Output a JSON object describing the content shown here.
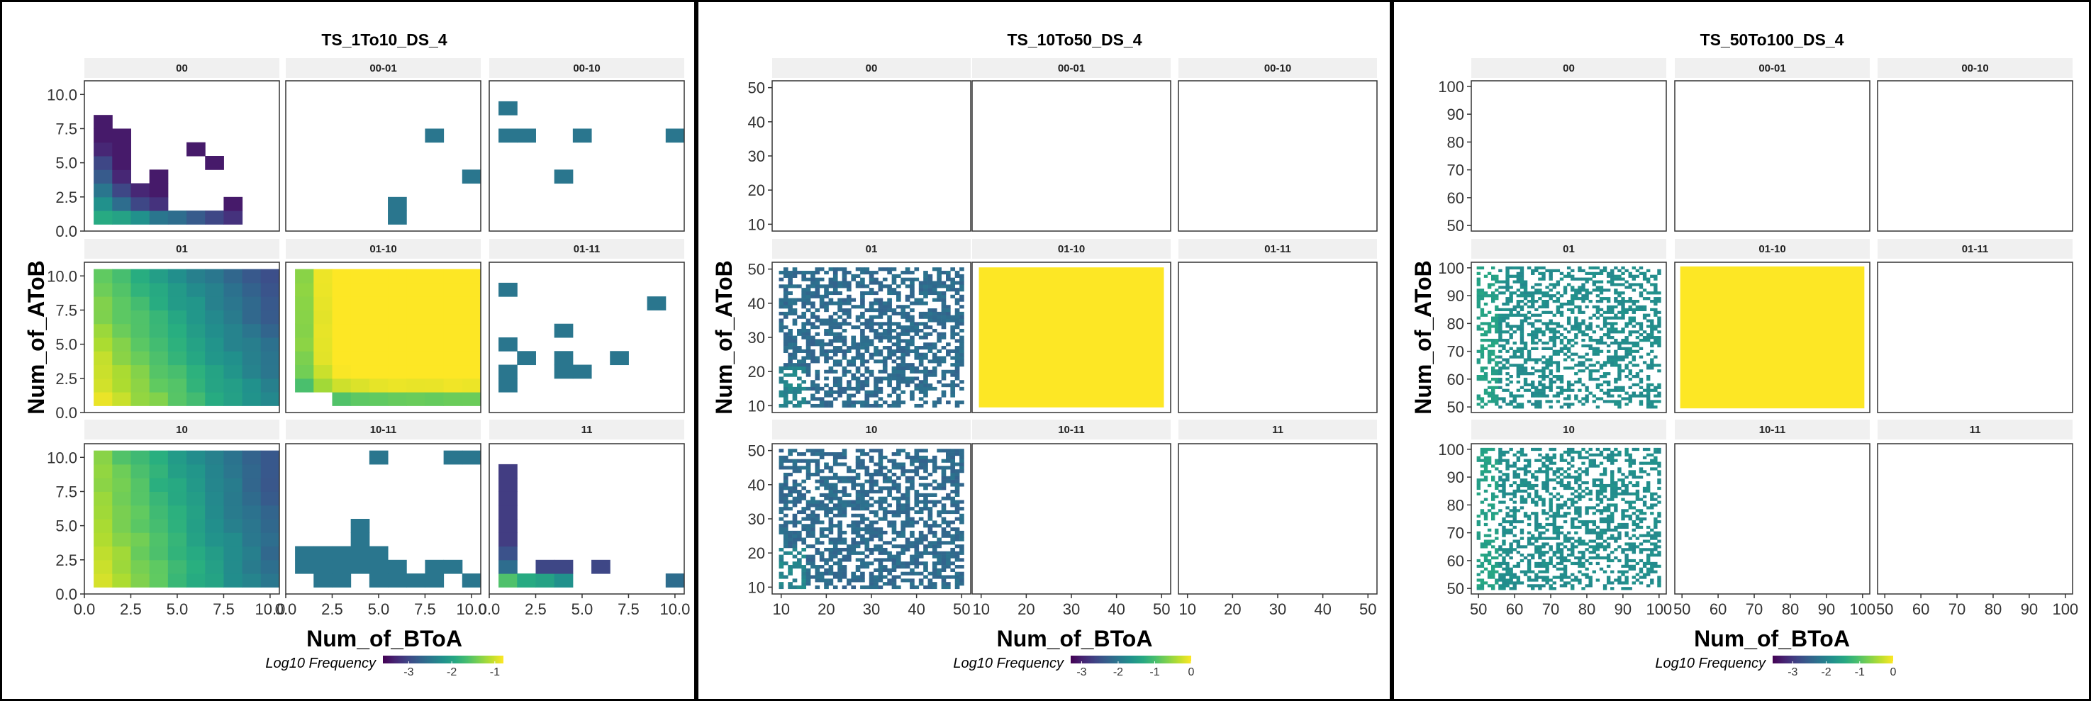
{
  "colors": {
    "background": "#ffffff",
    "strip_fill": "#f0f0f0",
    "frame": "#000000",
    "panel_border": "#333333",
    "viridis": [
      "#440154",
      "#472d7b",
      "#3b528b",
      "#2c728e",
      "#21918c",
      "#28ae80",
      "#5ec962",
      "#addc30",
      "#fde725"
    ]
  },
  "chart_data": [
    {
      "type": "heatmap",
      "title": "TS_1To10_DS_4",
      "xlabel": "Num_of_BToA",
      "ylabel": "Num_of_AToB",
      "facets": [
        "00",
        "00-01",
        "00-10",
        "01",
        "01-10",
        "01-11",
        "10",
        "10-11",
        "11"
      ],
      "xlim": [
        0,
        10.5
      ],
      "ylim": [
        0,
        11
      ],
      "x_ticks": [
        "0.0",
        "2.5",
        "5.0",
        "7.5",
        "10.0"
      ],
      "y_ticks": [
        "0.0",
        "2.5",
        "5.0",
        "7.5",
        "10.0"
      ],
      "legend": {
        "title": "Log10 Frequency",
        "labels": [
          "-3",
          "-2",
          "-1"
        ],
        "range": [
          -3.6,
          -0.8
        ],
        "position": "bottom"
      },
      "cells": {
        "00": [
          [
            1,
            1,
            -1.9
          ],
          [
            1,
            2,
            -2.2
          ],
          [
            1,
            3,
            -2.5
          ],
          [
            1,
            4,
            -2.8
          ],
          [
            1,
            5,
            -3.0
          ],
          [
            1,
            6,
            -3.3
          ],
          [
            1,
            7,
            -3.4
          ],
          [
            1,
            8,
            -3.4
          ],
          [
            2,
            1,
            -2.0
          ],
          [
            2,
            2,
            -2.6
          ],
          [
            2,
            3,
            -3.0
          ],
          [
            2,
            4,
            -3.3
          ],
          [
            2,
            5,
            -3.4
          ],
          [
            2,
            6,
            -3.4
          ],
          [
            2,
            7,
            -3.4
          ],
          [
            3,
            1,
            -2.2
          ],
          [
            3,
            2,
            -3.0
          ],
          [
            3,
            3,
            -3.3
          ],
          [
            4,
            1,
            -2.5
          ],
          [
            4,
            2,
            -3.2
          ],
          [
            4,
            3,
            -3.4
          ],
          [
            4,
            4,
            -3.4
          ],
          [
            5,
            1,
            -2.6
          ],
          [
            6,
            1,
            -2.8
          ],
          [
            6,
            6,
            -3.4
          ],
          [
            7,
            1,
            -3.0
          ],
          [
            7,
            5,
            -3.4
          ],
          [
            8,
            1,
            -3.2
          ],
          [
            8,
            2,
            -3.4
          ]
        ],
        "00-01": [
          [
            6,
            1,
            -2.5
          ],
          [
            6,
            2,
            -2.5
          ],
          [
            8,
            7,
            -2.5
          ],
          [
            10,
            4,
            -2.5
          ]
        ],
        "00-10": [
          [
            1,
            9,
            -2.5
          ],
          [
            1,
            7,
            -2.5
          ],
          [
            2,
            7,
            -2.5
          ],
          [
            4,
            4,
            -2.5
          ],
          [
            5,
            7,
            -2.5
          ],
          [
            10,
            7,
            -2.5
          ]
        ],
        "01": "smooth",
        "01-10": "smooth",
        "01-11": [
          [
            1,
            9,
            -2.5
          ],
          [
            1,
            5,
            -2.5
          ],
          [
            1,
            3,
            -2.5
          ],
          [
            1,
            2,
            -2.5
          ],
          [
            2,
            4,
            -2.5
          ],
          [
            4,
            6,
            -2.5
          ],
          [
            4,
            4,
            -2.5
          ],
          [
            4,
            3,
            -2.5
          ],
          [
            5,
            3,
            -2.5
          ],
          [
            7,
            4,
            -2.5
          ],
          [
            9,
            8,
            -2.5
          ]
        ],
        "10": "smooth",
        "10-11": [
          [
            1,
            3,
            -2.5
          ],
          [
            1,
            2,
            -2.5
          ],
          [
            2,
            3,
            -2.5
          ],
          [
            2,
            2,
            -2.5
          ],
          [
            2,
            1,
            -2.5
          ],
          [
            3,
            3,
            -2.5
          ],
          [
            3,
            2,
            -2.5
          ],
          [
            3,
            1,
            -2.5
          ],
          [
            4,
            5,
            -2.5
          ],
          [
            4,
            4,
            -2.5
          ],
          [
            4,
            3,
            -2.5
          ],
          [
            4,
            2,
            -2.5
          ],
          [
            5,
            3,
            -2.5
          ],
          [
            5,
            2,
            -2.5
          ],
          [
            5,
            1,
            -2.5
          ],
          [
            6,
            2,
            -2.5
          ],
          [
            6,
            1,
            -2.5
          ],
          [
            7,
            1,
            -2.5
          ],
          [
            8,
            2,
            -2.5
          ],
          [
            8,
            1,
            -2.5
          ],
          [
            9,
            2,
            -2.5
          ],
          [
            10,
            1,
            -2.5
          ],
          [
            5,
            10,
            -2.5
          ],
          [
            9,
            10,
            -2.5
          ],
          [
            10,
            10,
            -2.5
          ]
        ],
        "11": [
          [
            1,
            1,
            -1.6
          ],
          [
            1,
            2,
            -2.6
          ],
          [
            1,
            3,
            -2.9
          ],
          [
            1,
            4,
            -3.1
          ],
          [
            1,
            5,
            -3.1
          ],
          [
            1,
            6,
            -3.1
          ],
          [
            1,
            7,
            -3.1
          ],
          [
            1,
            8,
            -3.1
          ],
          [
            1,
            9,
            -3.1
          ],
          [
            2,
            1,
            -1.9
          ],
          [
            3,
            1,
            -2.0
          ],
          [
            3,
            2,
            -3.0
          ],
          [
            4,
            1,
            -2.2
          ],
          [
            4,
            2,
            -3.0
          ],
          [
            6,
            2,
            -3.0
          ],
          [
            10,
            1,
            -2.6
          ]
        ]
      }
    },
    {
      "type": "heatmap",
      "title": "TS_10To50_DS_4",
      "xlabel": "Num_of_BToA",
      "ylabel": "Num_of_AToB",
      "facets": [
        "00",
        "00-01",
        "00-10",
        "01",
        "01-10",
        "01-11",
        "10",
        "10-11",
        "11"
      ],
      "xlim": [
        8,
        52
      ],
      "ylim": [
        8,
        52
      ],
      "x_ticks": [
        "10",
        "20",
        "30",
        "40",
        "50"
      ],
      "y_ticks": [
        "10",
        "20",
        "30",
        "40",
        "50"
      ],
      "legend": {
        "title": "Log10 Frequency",
        "labels": [
          "-3",
          "-2",
          "-1",
          "0"
        ],
        "range": [
          -3.3,
          0
        ],
        "position": "bottom"
      },
      "cells": {
        "00": [],
        "00-01": [],
        "00-10": [],
        "01": "speckle",
        "01-10": "solid-max",
        "01-11": [],
        "10": "speckle",
        "10-11": [],
        "11": []
      }
    },
    {
      "type": "heatmap",
      "title": "TS_50To100_DS_4",
      "xlabel": "Num_of_BToA",
      "ylabel": "Num_of_AToB",
      "facets": [
        "00",
        "00-01",
        "00-10",
        "01",
        "01-10",
        "01-11",
        "10",
        "10-11",
        "11"
      ],
      "xlim": [
        48,
        102
      ],
      "ylim": [
        48,
        102
      ],
      "x_ticks": [
        "50",
        "60",
        "70",
        "80",
        "90",
        "100"
      ],
      "y_ticks": [
        "50",
        "60",
        "70",
        "80",
        "90",
        "100"
      ],
      "legend": {
        "title": "Log10 Frequency",
        "labels": [
          "-3",
          "-2",
          "-1",
          "0"
        ],
        "range": [
          -3.6,
          0
        ],
        "position": "bottom"
      },
      "cells": {
        "00": [],
        "00-01": [],
        "00-10": [],
        "01": "speckle",
        "01-10": "solid-max",
        "01-11": [],
        "10": "speckle",
        "10-11": [],
        "11": []
      }
    }
  ]
}
